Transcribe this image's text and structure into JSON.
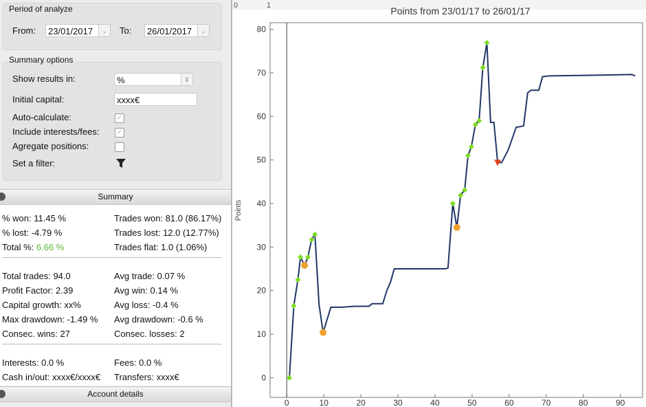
{
  "period": {
    "legend": "Period of analyze",
    "from_label": "From:",
    "from": "23/01/2017",
    "to_label": "To:",
    "to": "26/01/2017"
  },
  "options": {
    "legend": "Summary options",
    "show_label": "Show results in:",
    "show": "%",
    "capital_label": "Initial capital:",
    "capital": "xxxx€",
    "checks": [
      {
        "label": "Auto-calculate:",
        "checked": true
      },
      {
        "label": "Include interests/fees:",
        "checked": true
      },
      {
        "label": "Agregate positions:",
        "checked": false
      }
    ],
    "filter_label": "Set a filter:"
  },
  "summary": {
    "title": "Summary",
    "groups": [
      [
        [
          {
            "label": "% won:",
            "value": "11.45 %"
          },
          {
            "label": "Trades won:",
            "value": "81.0 (86.17%)"
          }
        ],
        [
          {
            "label": "% lost:",
            "value": "-4.79 %"
          },
          {
            "label": "Trades lost:",
            "value": "12.0 (12.77%)"
          }
        ],
        [
          {
            "label": "Total %:",
            "value": "6.66 %",
            "color": "#5cb531"
          },
          {
            "label": "Trades flat:",
            "value": "1.0 (1.06%)"
          }
        ]
      ],
      [
        [
          {
            "label": "Total trades:",
            "value": "94.0"
          },
          {
            "label": "Avg trade:",
            "value": "0.07 %"
          }
        ],
        [
          {
            "label": "Profit Factor:",
            "value": "2.39"
          },
          {
            "label": "Avg win:",
            "value": "0.14 %"
          }
        ],
        [
          {
            "label": "Capital growth:",
            "value": "xx%"
          },
          {
            "label": "Avg loss:",
            "value": "-0.4 %"
          }
        ],
        [
          {
            "label": "Max drawdown:",
            "value": "-1.49 %"
          },
          {
            "label": "Avg drawdown:",
            "value": "-0.6 %"
          }
        ],
        [
          {
            "label": "Consec. wins:",
            "value": "27"
          },
          {
            "label": "Consec. losses:",
            "value": "2"
          }
        ]
      ],
      [
        [
          {
            "label": "Interests:",
            "value": "0.0 %"
          },
          {
            "label": "Fees:",
            "value": "0.0 %"
          }
        ],
        [
          {
            "label": "Cash in/out:",
            "value": "xxxx€/xxxx€"
          },
          {
            "label": "Transfers:",
            "value": "xxxx€"
          }
        ]
      ]
    ]
  },
  "account": {
    "title": "Account details"
  },
  "ruler": [
    "0",
    "1"
  ],
  "chart_data": {
    "type": "line",
    "title": "Points from 23/01/17 to 26/01/17",
    "y_label": "Points",
    "xlim": [
      -4.5,
      96
    ],
    "ylim": [
      -4.5,
      81.5
    ],
    "xticks": [
      0,
      10,
      20,
      30,
      40,
      50,
      60,
      70,
      80,
      90
    ],
    "yticks": [
      0,
      10,
      20,
      30,
      40,
      50,
      60,
      70,
      80
    ],
    "series": [
      {
        "marker": "line",
        "color": "#1f3566",
        "x": [
          0,
          0.7,
          1.9,
          3,
          3.7,
          4.8,
          5.7,
          6.7,
          7.6,
          8.7,
          9.8,
          11.9,
          14.8,
          18.3,
          22.2,
          23,
          25.9,
          27,
          28,
          29,
          42.8,
          43.5,
          44.8,
          45.9,
          46.9,
          48,
          48.9,
          49.8,
          50.9,
          51.9,
          52.9,
          54,
          55,
          55.9,
          56.9,
          58,
          59.8,
          61.9,
          63.9,
          65,
          65.9,
          68,
          69,
          70.9,
          80.2,
          93.1,
          94
        ],
        "values": [
          0,
          0,
          16.5,
          22.5,
          27.7,
          25.8,
          27.7,
          31.7,
          32.9,
          16.9,
          10.4,
          16.2,
          16.2,
          16.4,
          16.4,
          17,
          17,
          20,
          22,
          25,
          25,
          25.2,
          40,
          34.5,
          41.9,
          43.1,
          51,
          53,
          58.1,
          59,
          71.2,
          76.9,
          58.6,
          58.6,
          49.4,
          49.4,
          52.4,
          57.5,
          57.8,
          65.4,
          66,
          66,
          69.1,
          69.3,
          69.4,
          69.6,
          69.3
        ]
      },
      {
        "marker": "diamond",
        "color": "#7ddc1f",
        "x": [
          0.7,
          1.9,
          3,
          3.7,
          5.7,
          6.7,
          7.6,
          44.8,
          46.9,
          48,
          48.9,
          49.8,
          50.9,
          51.9,
          52.9,
          54
        ],
        "values": [
          0,
          16.5,
          22.5,
          27.7,
          27.7,
          31.7,
          32.9,
          40,
          41.9,
          43.1,
          51,
          53,
          58.1,
          59,
          71.2,
          76.9
        ]
      },
      {
        "marker": "circle",
        "color": "#f0a030",
        "x": [
          4.8,
          9.8,
          45.9
        ],
        "values": [
          25.8,
          10.4,
          34.5
        ]
      },
      {
        "marker": "triangle",
        "color": "#e0401c",
        "x": [
          56.9
        ],
        "values": [
          49.4
        ]
      }
    ]
  }
}
